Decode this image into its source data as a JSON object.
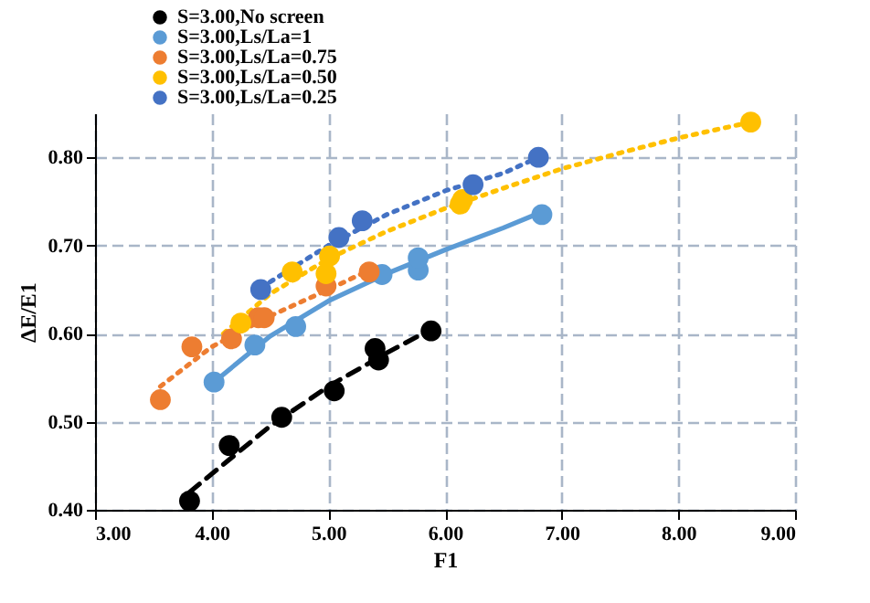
{
  "chart_data": {
    "type": "scatter",
    "xlabel": "F1",
    "ylabel": "ΔE/E1",
    "xlim": [
      3,
      9
    ],
    "ylim": [
      0.4,
      0.85
    ],
    "xticks": [
      {
        "value": 3,
        "label": "3.00"
      },
      {
        "value": 4,
        "label": "4.00"
      },
      {
        "value": 5,
        "label": "5.00"
      },
      {
        "value": 6,
        "label": "6.00"
      },
      {
        "value": 7,
        "label": "7.00"
      },
      {
        "value": 8,
        "label": "8.00"
      },
      {
        "value": 9,
        "label": "9.00"
      }
    ],
    "yticks": [
      {
        "value": 0.4,
        "label": "0.40"
      },
      {
        "value": 0.5,
        "label": "0.50"
      },
      {
        "value": 0.6,
        "label": "0.60"
      },
      {
        "value": 0.7,
        "label": "0.70"
      },
      {
        "value": 0.8,
        "label": "0.80"
      }
    ],
    "grid": true,
    "legend": "top left",
    "marker": "circle",
    "series": [
      {
        "name": "S=3.00,No screen",
        "color": "#000000",
        "x": [
          3.81,
          4.15,
          4.6,
          5.05,
          5.4,
          5.43,
          5.88
        ],
        "values": [
          0.41,
          0.473,
          0.505,
          0.535,
          0.583,
          0.57,
          0.603
        ]
      },
      {
        "name": "S=3.00,Ls/La=1",
        "color": "#5b9bd5",
        "x": [
          4.02,
          4.37,
          4.72,
          5.46,
          5.77,
          5.77,
          6.83
        ],
        "values": [
          0.545,
          0.587,
          0.608,
          0.667,
          0.672,
          0.686,
          0.735
        ]
      },
      {
        "name": "S=3.00,Ls/La=0.75",
        "color": "#ed7d31",
        "x": [
          3.56,
          3.83,
          4.17,
          4.4,
          4.45,
          4.98,
          5.35
        ],
        "values": [
          0.525,
          0.585,
          0.594,
          0.618,
          0.618,
          0.654,
          0.67
        ]
      },
      {
        "name": "S=3.00,Ls/La=0.50",
        "color": "#ffc000",
        "x": [
          4.25,
          4.69,
          4.98,
          5.01,
          6.13,
          6.15,
          8.62
        ],
        "values": [
          0.612,
          0.67,
          0.668,
          0.688,
          0.747,
          0.752,
          0.84
        ]
      },
      {
        "name": "S=3.00,Ls/La=0.25",
        "color": "#4472c4",
        "x": [
          4.42,
          5.09,
          5.29,
          6.24,
          6.8
        ],
        "values": [
          0.65,
          0.709,
          0.728,
          0.769,
          0.8
        ]
      },
      {
        "type": "line",
        "line_style": "dashed",
        "marker": "none",
        "color": "#000000",
        "x": [
          3.81,
          4.5,
          5.0,
          5.5,
          5.88
        ],
        "values": [
          0.42,
          0.495,
          0.54,
          0.578,
          0.605
        ]
      },
      {
        "type": "line",
        "line_style": "solid",
        "marker": "none",
        "color": "#5b9bd5",
        "x": [
          4.02,
          4.5,
          5.0,
          5.5,
          6.0,
          6.5,
          6.83
        ],
        "values": [
          0.545,
          0.597,
          0.637,
          0.668,
          0.695,
          0.72,
          0.738
        ]
      },
      {
        "type": "line",
        "line_style": "dotted",
        "marker": "none",
        "color": "#ed7d31",
        "x": [
          3.56,
          4.0,
          4.5,
          5.0,
          5.35
        ],
        "values": [
          0.54,
          0.585,
          0.62,
          0.65,
          0.672
        ]
      },
      {
        "type": "line",
        "line_style": "dotted",
        "marker": "none",
        "color": "#ffc000",
        "x": [
          4.1,
          4.5,
          5.0,
          5.5,
          6.0,
          6.5,
          7.0,
          7.5,
          8.0,
          8.62
        ],
        "values": [
          0.6,
          0.645,
          0.685,
          0.716,
          0.742,
          0.765,
          0.787,
          0.805,
          0.822,
          0.84
        ]
      },
      {
        "type": "line",
        "line_style": "dotted",
        "marker": "none",
        "color": "#4472c4",
        "x": [
          4.42,
          5.0,
          5.5,
          6.0,
          6.5,
          6.8
        ],
        "values": [
          0.652,
          0.7,
          0.735,
          0.762,
          0.782,
          0.8
        ]
      }
    ]
  }
}
